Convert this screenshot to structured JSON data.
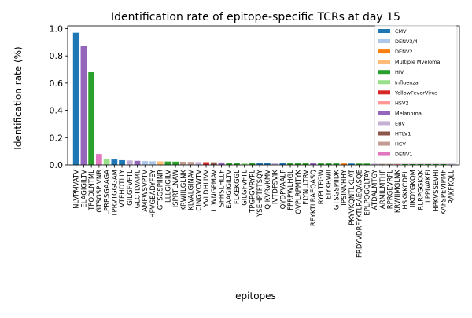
{
  "chart_data": {
    "type": "bar",
    "title": "Identification rate of epitope-specific TCRs at day 15",
    "xlabel": "epitopes",
    "ylabel": "Identification rate (%)",
    "ylim": [
      0,
      1.02
    ],
    "yticks": [
      "0.0",
      "0.2",
      "0.4",
      "0.6",
      "0.8",
      "1.0"
    ],
    "grid": false,
    "legend_position": "top-right",
    "legend": [
      {
        "name": "CMV",
        "color": "#1f77b4"
      },
      {
        "name": "DENV3/4",
        "color": "#aec7e8"
      },
      {
        "name": "DENV2",
        "color": "#ff7f0e"
      },
      {
        "name": "Multiple Myeloma",
        "color": "#ffbb78"
      },
      {
        "name": "HIV",
        "color": "#2ca02c"
      },
      {
        "name": "Influenza",
        "color": "#98df8a"
      },
      {
        "name": "YellowFeverVirus",
        "color": "#d62728"
      },
      {
        "name": "HSV2",
        "color": "#ff9896"
      },
      {
        "name": "Melanoma",
        "color": "#9467bd"
      },
      {
        "name": "EBV",
        "color": "#c5b0d5"
      },
      {
        "name": "HTLV1",
        "color": "#8c564b"
      },
      {
        "name": "HCV",
        "color": "#c49c94"
      },
      {
        "name": "DENV1",
        "color": "#e377c2"
      }
    ],
    "bars": [
      {
        "label": "NLVPMVATV",
        "value": 0.97,
        "group": "CMV"
      },
      {
        "label": "ELAGIGILTV",
        "value": 0.875,
        "group": "Melanoma"
      },
      {
        "label": "TPQDLNTML",
        "value": 0.68,
        "group": "HIV"
      },
      {
        "label": "GTSGSPIVNR",
        "value": 0.08,
        "group": "DENV1"
      },
      {
        "label": "LPRRSGAAGA",
        "value": 0.045,
        "group": "Influenza"
      },
      {
        "label": "TPRVTGGGAM",
        "value": 0.04,
        "group": "CMV"
      },
      {
        "label": "VTEHDTLLY",
        "value": 0.035,
        "group": "CMV"
      },
      {
        "label": "GILGFVFTL",
        "value": 0.033,
        "group": "EBV"
      },
      {
        "label": "GLCTLVAML",
        "value": 0.03,
        "group": "Melanoma"
      },
      {
        "label": "AMFWSVPTV",
        "value": 0.028,
        "group": "DENV3/4"
      },
      {
        "label": "HPVGEADYFEY",
        "value": 0.027,
        "group": "DENV3/4"
      },
      {
        "label": "GTSGSPIINR",
        "value": 0.026,
        "group": "Multiple Myeloma"
      },
      {
        "label": "LLLGIGILV",
        "value": 0.025,
        "group": "HIV"
      },
      {
        "label": "ISPRTLNAW",
        "value": 0.024,
        "group": "HIV"
      },
      {
        "label": "KRWIILGLNK",
        "value": 0.023,
        "group": "HCV"
      },
      {
        "label": "KLVALGINAV",
        "value": 0.022,
        "group": "HCV"
      },
      {
        "label": "CINGVCWTV",
        "value": 0.021,
        "group": "EBV"
      },
      {
        "label": "YVLDHLIVV",
        "value": 0.02,
        "group": "YellowFeverVirus"
      },
      {
        "label": "LLWNGPMAV",
        "value": 0.019,
        "group": "HTLV1"
      },
      {
        "label": "SFHSLHLLF",
        "value": 0.018,
        "group": "Melanoma"
      },
      {
        "label": "EAAGIGILTV",
        "value": 0.017,
        "group": "HIV"
      },
      {
        "label": "FLKEKGGL",
        "value": 0.016,
        "group": "HIV"
      },
      {
        "label": "GILGFVFTL",
        "value": 0.016,
        "group": "Influenza"
      },
      {
        "label": "TPGPGVRYPL",
        "value": 0.015,
        "group": "HIV"
      },
      {
        "label": "YSEHPTFTSQY",
        "value": 0.015,
        "group": "CMV"
      },
      {
        "label": "QIKVRVKMV",
        "value": 0.014,
        "group": "CMV"
      },
      {
        "label": "IVTDFSVIK",
        "value": 0.014,
        "group": "EBV"
      },
      {
        "label": "QYDPVAALF",
        "value": 0.013,
        "group": "CMV"
      },
      {
        "label": "FPRPWLHGL",
        "value": 0.013,
        "group": "HIV"
      },
      {
        "label": "QVPLRPMTYK",
        "value": 0.012,
        "group": "HIV"
      },
      {
        "label": "FLYNLLTRV",
        "value": 0.012,
        "group": "HIV"
      },
      {
        "label": "RFYKTLRAEQASQ",
        "value": 0.012,
        "group": "Melanoma"
      },
      {
        "label": "RYPLTFGW",
        "value": 0.011,
        "group": "HIV"
      },
      {
        "label": "EIYKRWII",
        "value": 0.011,
        "group": "HIV"
      },
      {
        "label": "GTSGSPIIDK",
        "value": 0.011,
        "group": "HIV"
      },
      {
        "label": "IPSINVHHY",
        "value": 0.011,
        "group": "DENV2"
      },
      {
        "label": "PKYVKQNTLKLAT",
        "value": 0.01,
        "group": "CMV"
      },
      {
        "label": "FRDYVDRFYKTLRAEQASQE",
        "value": 0.01,
        "group": "HIV"
      },
      {
        "label": "EPLPQGQLTAY",
        "value": 0.01,
        "group": "HIV"
      },
      {
        "label": "ATDALMTGY",
        "value": 0.009,
        "group": "EBV"
      },
      {
        "label": "ARMILMTHF",
        "value": 0.009,
        "group": "HCV"
      },
      {
        "label": "RPRGEVRFL",
        "value": 0.009,
        "group": "HCV"
      },
      {
        "label": "KRWIIMGLNK",
        "value": 0.008,
        "group": "HSV2"
      },
      {
        "label": "HSKKKCDEL",
        "value": 0.008,
        "group": "HIV"
      },
      {
        "label": "IIKDYGKQM",
        "value": 0.008,
        "group": "HIV"
      },
      {
        "label": "RLRPGGKKK",
        "value": 0.007,
        "group": "HIV"
      },
      {
        "label": "LPPIVAKEI",
        "value": 0.007,
        "group": "HIV"
      },
      {
        "label": "HPKVSSEVHI",
        "value": 0.006,
        "group": "HIV"
      },
      {
        "label": "KAFSPEVIPMF",
        "value": 0.006,
        "group": "HIV"
      },
      {
        "label": "RAKFKQLL",
        "value": 0.005,
        "group": "EBV"
      }
    ]
  }
}
